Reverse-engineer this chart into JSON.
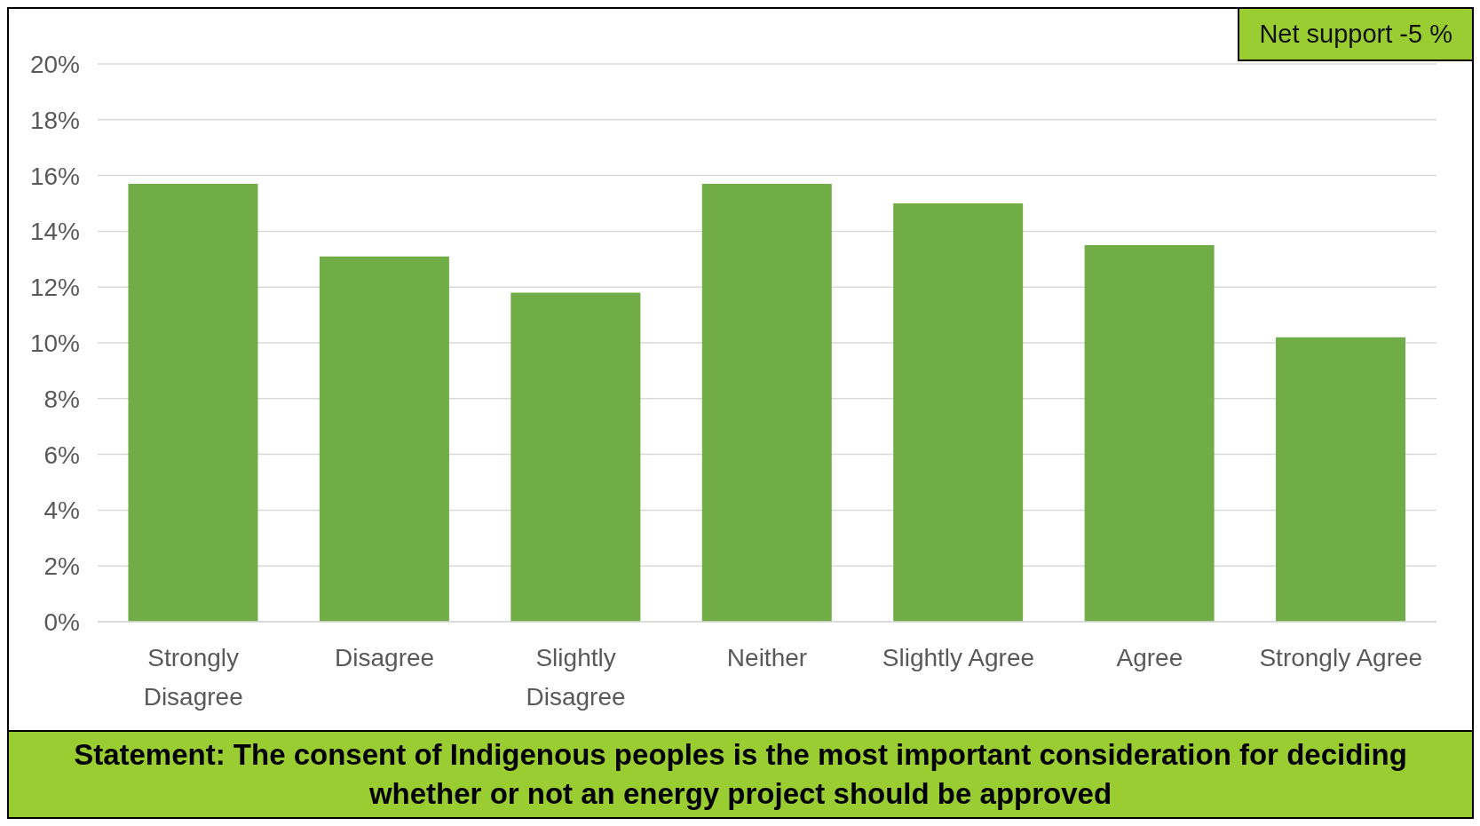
{
  "chart_data": {
    "type": "bar",
    "title": "Statement: The consent of Indigenous peoples is the most important consideration for deciding whether or not an energy project should be approved",
    "annotations": [
      "Net support -5 %"
    ],
    "categories": [
      "Strongly Disagree",
      "Disagree",
      "Slightly Disagree",
      "Neither",
      "Slightly Agree",
      "Agree",
      "Strongly Agree"
    ],
    "values": [
      15.7,
      13.1,
      11.8,
      15.7,
      15.0,
      13.5,
      10.2
    ],
    "color": "#70ad47",
    "ylim": [
      0,
      20
    ],
    "yticks": [
      {
        "value": 0,
        "label": "0%"
      },
      {
        "value": 2,
        "label": "2%"
      },
      {
        "value": 4,
        "label": "4%"
      },
      {
        "value": 6,
        "label": "6%"
      },
      {
        "value": 8,
        "label": "8%"
      },
      {
        "value": 10,
        "label": "10%"
      },
      {
        "value": 12,
        "label": "12%"
      },
      {
        "value": 14,
        "label": "14%"
      },
      {
        "value": 16,
        "label": "16%"
      },
      {
        "value": 18,
        "label": "18%"
      },
      {
        "value": 20,
        "label": "20%"
      }
    ],
    "grid": "y"
  }
}
